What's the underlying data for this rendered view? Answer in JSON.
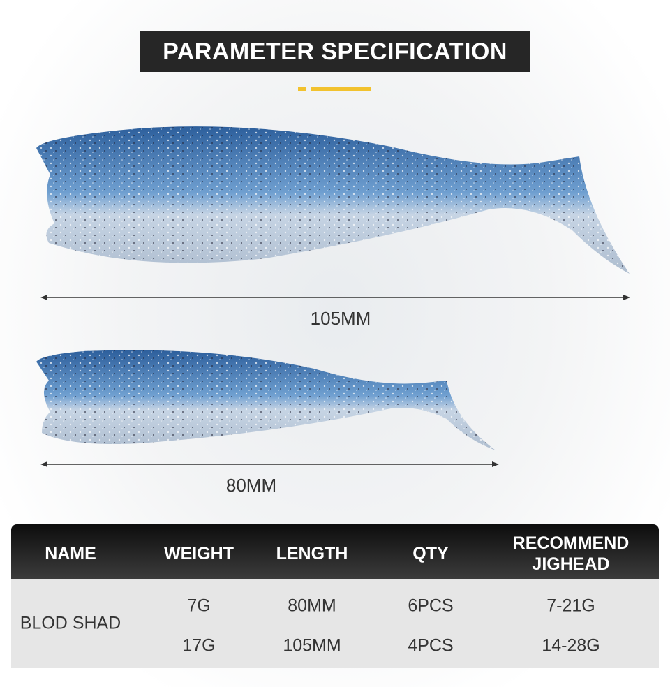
{
  "header": {
    "title": "PARAMETER SPECIFICATION"
  },
  "lures": [
    {
      "length_label": "105MM"
    },
    {
      "length_label": "80MM"
    }
  ],
  "table": {
    "columns": [
      "NAME",
      "WEIGHT",
      "LENGTH",
      "QTY",
      "RECOMMEND JIGHEAD"
    ],
    "name": "BLOD SHAD",
    "rows": [
      [
        "7G",
        "80MM",
        "6PCS",
        "7-21G"
      ],
      [
        "17G",
        "105MM",
        "4PCS",
        "14-28G"
      ]
    ]
  }
}
